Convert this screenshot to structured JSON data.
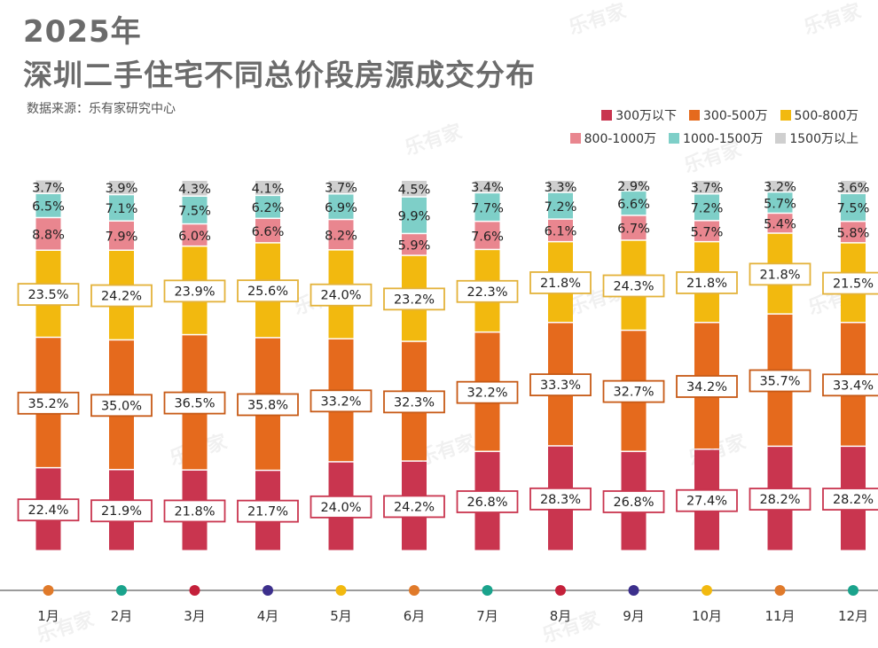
{
  "title_line1": "2025年",
  "title_line2": "深圳二手住宅不同总价段房源成交分布",
  "source": "数据来源：乐有家研究中心",
  "watermark": "乐有家",
  "chart_data": {
    "type": "bar",
    "stacked": true,
    "categories": [
      "1月",
      "2月",
      "3月",
      "4月",
      "5月",
      "6月",
      "7月",
      "8月",
      "9月",
      "10月",
      "11月",
      "12月"
    ],
    "series": [
      {
        "name": "300万以下",
        "color": "#c9354f",
        "values": [
          22.4,
          21.9,
          21.8,
          21.7,
          24.0,
          24.2,
          26.8,
          28.3,
          26.8,
          27.4,
          28.2,
          28.2
        ]
      },
      {
        "name": "300-500万",
        "color": "#e56a1d",
        "values": [
          35.2,
          35.0,
          36.5,
          35.8,
          33.2,
          32.3,
          32.2,
          33.3,
          32.7,
          34.2,
          35.7,
          33.4
        ]
      },
      {
        "name": "500-800万",
        "color": "#f2b90f",
        "values": [
          23.5,
          24.2,
          23.9,
          25.6,
          24.0,
          23.2,
          22.3,
          21.8,
          24.3,
          21.8,
          21.8,
          21.5
        ]
      },
      {
        "name": "800-1000万",
        "color": "#e9868f",
        "values": [
          8.8,
          7.9,
          6.0,
          6.6,
          8.2,
          5.9,
          7.6,
          6.1,
          6.7,
          5.7,
          5.4,
          5.8
        ]
      },
      {
        "name": "1000-1500万",
        "color": "#7ecfc8",
        "values": [
          6.5,
          7.1,
          7.5,
          6.2,
          6.9,
          9.9,
          7.7,
          7.2,
          6.6,
          7.2,
          5.7,
          7.5
        ]
      },
      {
        "name": "1500万以上",
        "color": "#cfcfcf",
        "values": [
          3.7,
          3.9,
          4.3,
          4.1,
          3.7,
          4.5,
          3.4,
          3.3,
          2.9,
          3.7,
          3.2,
          3.6
        ]
      }
    ],
    "value_suffix": "%",
    "ylim": [
      0,
      100
    ],
    "legend_position": "top-right",
    "axis_dot_colors": [
      "#e07a2a",
      "#1aa38c",
      "#c4203a",
      "#3c2f8c",
      "#f2b90f",
      "#e07a2a",
      "#1aa38c",
      "#c4203a",
      "#3c2f8c",
      "#f2b90f",
      "#e07a2a",
      "#1aa38c"
    ]
  }
}
